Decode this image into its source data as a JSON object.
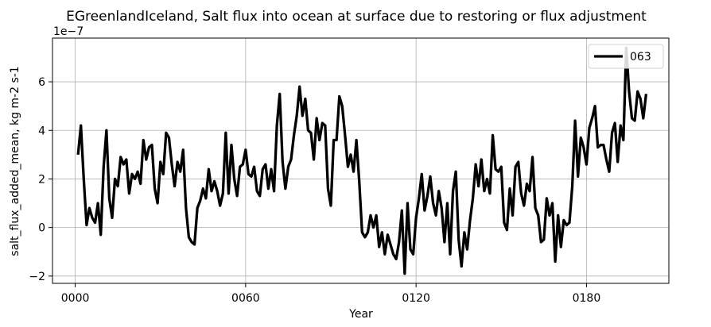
{
  "chart_data": {
    "type": "line",
    "title": "EGreenlandIceland, Salt flux into ocean at surface due to restoring or flux adjustment",
    "xlabel": "Year",
    "ylabel": "salt_flux_added_mean, kg m-2 s-1",
    "y_offset_label": "1e−7",
    "y_scale_factor": 1e-07,
    "xlim": [
      -8,
      209
    ],
    "ylim": [
      -2.3,
      7.8
    ],
    "xticks": [
      0,
      60,
      120,
      180
    ],
    "xtick_labels": [
      "0000",
      "0060",
      "0120",
      "0180"
    ],
    "yticks": [
      -2,
      0,
      2,
      4,
      6
    ],
    "ytick_labels": [
      "−2",
      "0",
      "2",
      "4",
      "6"
    ],
    "grid": true,
    "legend_position": "top-right",
    "series": [
      {
        "name": "063",
        "color": "#000000",
        "x_start": 1,
        "x_step": 1,
        "values": [
          3.0,
          4.2,
          2.0,
          0.1,
          0.8,
          0.4,
          0.2,
          1.0,
          -0.3,
          2.5,
          4.0,
          1.2,
          0.4,
          2.0,
          1.7,
          2.9,
          2.6,
          2.8,
          1.4,
          2.2,
          2.0,
          2.3,
          1.8,
          3.6,
          2.8,
          3.3,
          3.4,
          1.6,
          1.0,
          2.7,
          2.2,
          3.9,
          3.7,
          2.6,
          1.7,
          2.7,
          2.3,
          3.2,
          0.8,
          -0.4,
          -0.6,
          -0.7,
          0.8,
          1.1,
          1.6,
          1.2,
          2.4,
          1.5,
          1.9,
          1.5,
          0.9,
          1.4,
          3.9,
          1.4,
          3.4,
          2.0,
          1.3,
          2.5,
          2.6,
          3.2,
          2.2,
          2.1,
          2.5,
          1.5,
          1.3,
          2.4,
          2.6,
          1.6,
          2.4,
          1.5,
          4.2,
          5.5,
          2.7,
          1.6,
          2.5,
          2.8,
          3.8,
          4.6,
          5.8,
          4.6,
          5.3,
          4.0,
          3.9,
          2.8,
          4.5,
          3.6,
          4.3,
          4.2,
          1.6,
          0.9,
          3.6,
          3.6,
          5.4,
          5.0,
          3.8,
          2.5,
          3.0,
          2.3,
          3.6,
          1.9,
          -0.2,
          -0.4,
          -0.2,
          0.5,
          0.0,
          0.5,
          -0.8,
          -0.2,
          -1.1,
          -0.3,
          -0.7,
          -1.1,
          -1.3,
          -0.6,
          0.7,
          -1.9,
          1.0,
          -0.9,
          -1.1,
          0.4,
          1.2,
          2.2,
          0.7,
          1.3,
          2.1,
          1.0,
          0.5,
          1.5,
          0.8,
          -0.6,
          1.0,
          -1.1,
          1.5,
          2.3,
          -0.5,
          -1.6,
          -0.2,
          -0.9,
          0.3,
          1.2,
          2.6,
          1.7,
          2.8,
          1.5,
          2.0,
          1.4,
          3.8,
          2.4,
          2.3,
          2.5,
          0.2,
          -0.1,
          1.6,
          0.5,
          2.5,
          2.7,
          1.4,
          0.9,
          1.8,
          1.5,
          2.9,
          0.8,
          0.5,
          -0.6,
          -0.5,
          1.2,
          0.5,
          1.0,
          -1.4,
          0.5,
          -0.8,
          0.3,
          0.1,
          0.2,
          1.7,
          4.4,
          2.1,
          3.7,
          3.3,
          2.6,
          4.1,
          4.5,
          5.0,
          3.3,
          3.4,
          3.4,
          2.8,
          2.3,
          3.9,
          4.3,
          2.7,
          4.2,
          3.6,
          7.4,
          5.6,
          4.5,
          4.4,
          5.6,
          5.3,
          4.5,
          5.5
        ]
      }
    ]
  }
}
